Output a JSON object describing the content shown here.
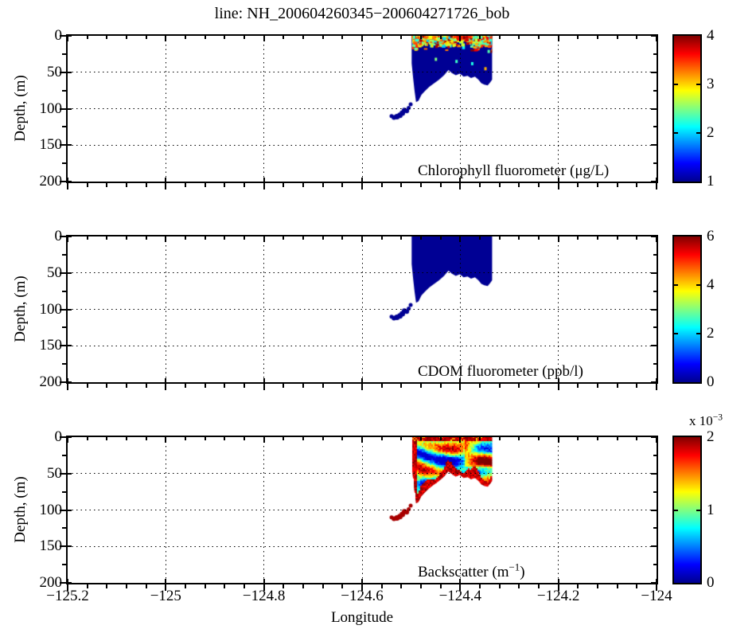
{
  "title": "line: NH_200604260345−200604271726_bob",
  "axes": {
    "xlabel": "Longitude",
    "ylabel": "Depth, (m)",
    "xlim": [
      -125.2,
      -124
    ],
    "x_major_ticks": [
      -125.2,
      -125,
      -124.8,
      -124.6,
      -124.4,
      -124.2,
      -124
    ],
    "x_tick_labels": [
      "−125.2",
      "−125",
      "−124.8",
      "−124.6",
      "−124.4",
      "−124.2",
      "−124"
    ],
    "x_minor_step": 0.04,
    "depth_lim": [
      0,
      200
    ],
    "y_major_ticks": [
      0,
      50,
      100,
      150,
      200
    ],
    "y_tick_labels": [
      "0",
      "50",
      "100",
      "150",
      "200"
    ],
    "y_minor_ticks": [
      25,
      75,
      125,
      175
    ],
    "grid_style": "dotted"
  },
  "panels": [
    {
      "name": "chlorophyll",
      "label_pre": "Chlorophyll fluorometer (μg/L)",
      "label_sup": "",
      "label_post": "",
      "colorbar": {
        "min": 1,
        "max": 4,
        "ticks": [
          1,
          2,
          3,
          4
        ],
        "tick_labels": [
          "1",
          "2",
          "3",
          "4"
        ],
        "exponent_pre": "",
        "exponent_sup": ""
      }
    },
    {
      "name": "cdom",
      "label_pre": "CDOM fluorometer (ppb/l)",
      "label_sup": "",
      "label_post": "",
      "colorbar": {
        "min": 0,
        "max": 6,
        "ticks": [
          0,
          2,
          4,
          6
        ],
        "tick_labels": [
          "0",
          "2",
          "4",
          "6"
        ],
        "exponent_pre": "",
        "exponent_sup": ""
      }
    },
    {
      "name": "backscatter",
      "label_pre": "Backscatter (m",
      "label_sup": "−1",
      "label_post": ")",
      "colorbar": {
        "min": 0,
        "max": 2,
        "ticks": [
          0,
          1,
          2
        ],
        "tick_labels": [
          "0",
          "1",
          "2"
        ],
        "exponent_pre": "x 10",
        "exponent_sup": "−3"
      }
    }
  ],
  "section_geometry": {
    "outline_lon_depth": [
      [
        -124.499,
        0
      ],
      [
        -124.499,
        38
      ],
      [
        -124.496,
        58
      ],
      [
        -124.493,
        76
      ],
      [
        -124.49,
        91
      ],
      [
        -124.485,
        89
      ],
      [
        -124.479,
        81
      ],
      [
        -124.471,
        75
      ],
      [
        -124.463,
        70
      ],
      [
        -124.453,
        65
      ],
      [
        -124.443,
        60
      ],
      [
        -124.433,
        54
      ],
      [
        -124.424,
        47
      ],
      [
        -124.417,
        51
      ],
      [
        -124.409,
        54
      ],
      [
        -124.401,
        52
      ],
      [
        -124.393,
        56
      ],
      [
        -124.385,
        55
      ],
      [
        -124.378,
        58
      ],
      [
        -124.37,
        56
      ],
      [
        -124.363,
        60
      ],
      [
        -124.357,
        65
      ],
      [
        -124.351,
        67
      ],
      [
        -124.344,
        68
      ],
      [
        -124.339,
        64
      ],
      [
        -124.335,
        60
      ],
      [
        -124.335,
        0
      ]
    ],
    "tail_points_lon_depth_r": [
      [
        -124.501,
        94,
        2.5
      ],
      [
        -124.505,
        99,
        2.5
      ],
      [
        -124.509,
        103,
        3
      ],
      [
        -124.514,
        102,
        3
      ],
      [
        -124.518,
        106,
        3.5
      ],
      [
        -124.523,
        109,
        3.5
      ],
      [
        -124.529,
        111,
        3.5
      ],
      [
        -124.535,
        112,
        3
      ],
      [
        -124.54,
        110,
        2.5
      ]
    ]
  },
  "chart_data": [
    {
      "type": "heatmap",
      "title": "Chlorophyll fluorometer (μg/L)",
      "xlabel": "Longitude",
      "ylabel": "Depth, (m)",
      "colormap": "jet",
      "clim": [
        1,
        4
      ],
      "xlim": [
        -125.2,
        -124
      ],
      "ylim": [
        0,
        200
      ],
      "y_reversed": true,
      "data_lon_range": [
        -124.54,
        -124.335
      ],
      "data_depth_range": [
        0,
        112
      ],
      "values_summary": "Background ~1 μg/L (dark blue) throughout section; speckled patches of 2–4 μg/L (cyan/green/yellow/red) concentrated in upper 15 m; red/orange band at surface near right side; sparse bright dots down to ~45 m; deep tail near lon −124.52 to −124.54 at 95–112 m is ~1 μg/L",
      "bright_spots": [
        {
          "lon": -124.378,
          "depth": 36,
          "value": 2.2
        },
        {
          "lon": -124.351,
          "depth": 43,
          "value": 3.1
        },
        {
          "lon": -124.452,
          "depth": 30,
          "value": 2.5
        },
        {
          "lon": -124.41,
          "depth": 33,
          "value": 2.3
        }
      ]
    },
    {
      "type": "heatmap",
      "title": "CDOM fluorometer (ppb/l)",
      "xlabel": "Longitude",
      "ylabel": "Depth, (m)",
      "colormap": "jet",
      "clim": [
        0,
        6
      ],
      "xlim": [
        -125.2,
        -124
      ],
      "ylim": [
        0,
        200
      ],
      "y_reversed": true,
      "data_lon_range": [
        -124.54,
        -124.335
      ],
      "data_depth_range": [
        0,
        112
      ],
      "values_summary": "Uniformly near 0 ppb/l (solid dark navy blue) over the entire sampled section including the deep tail"
    },
    {
      "type": "heatmap",
      "title": "Backscatter (m^-1)",
      "xlabel": "Longitude",
      "ylabel": "Depth, (m)",
      "colormap": "jet",
      "clim": [
        0,
        0.002
      ],
      "clim_exponent": "x 10^-3",
      "xlim": [
        -125.2,
        -124
      ],
      "ylim": [
        0,
        200
      ],
      "y_reversed": true,
      "data_lon_range": [
        -124.54,
        -124.335
      ],
      "data_depth_range": [
        0,
        112
      ],
      "values_summary": "High backscatter ~2e-3 (dark red) in surface band 0–5 m, along left margin, along the bottom boundary (~10–15 m thick) and in the deep tail; interior 8–45 m is turbulent mix of 0.3–1.4e-3 (blue/cyan/green) with yellow-orange-red patches, hotter toward the right side"
    }
  ]
}
